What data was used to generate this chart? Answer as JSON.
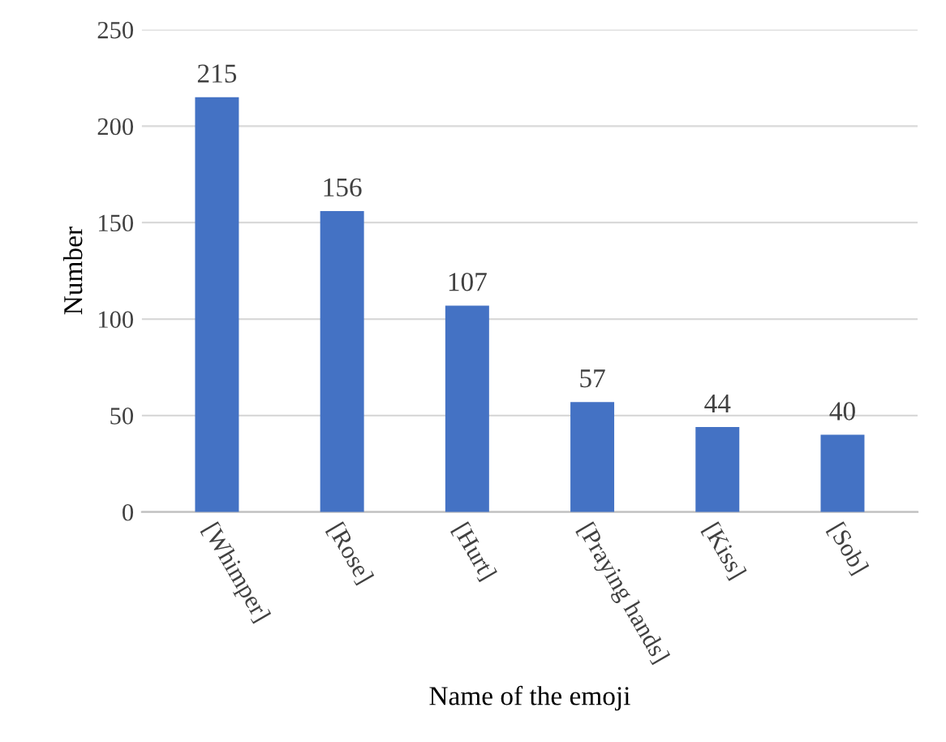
{
  "chart_data": {
    "type": "bar",
    "xlabel": "Name of the emoji",
    "ylabel": "Number",
    "categories": [
      "[Whimper]",
      "[Rose]",
      "[Hurt]",
      "[Praying hands]",
      "[Kiss]",
      "[Sob]"
    ],
    "values": [
      215,
      156,
      107,
      57,
      44,
      40
    ],
    "color": "#4472c4",
    "ylim": [
      0,
      250
    ],
    "yticks": [
      0,
      50,
      100,
      150,
      200,
      250
    ],
    "grid": "y",
    "data_labels": true
  }
}
